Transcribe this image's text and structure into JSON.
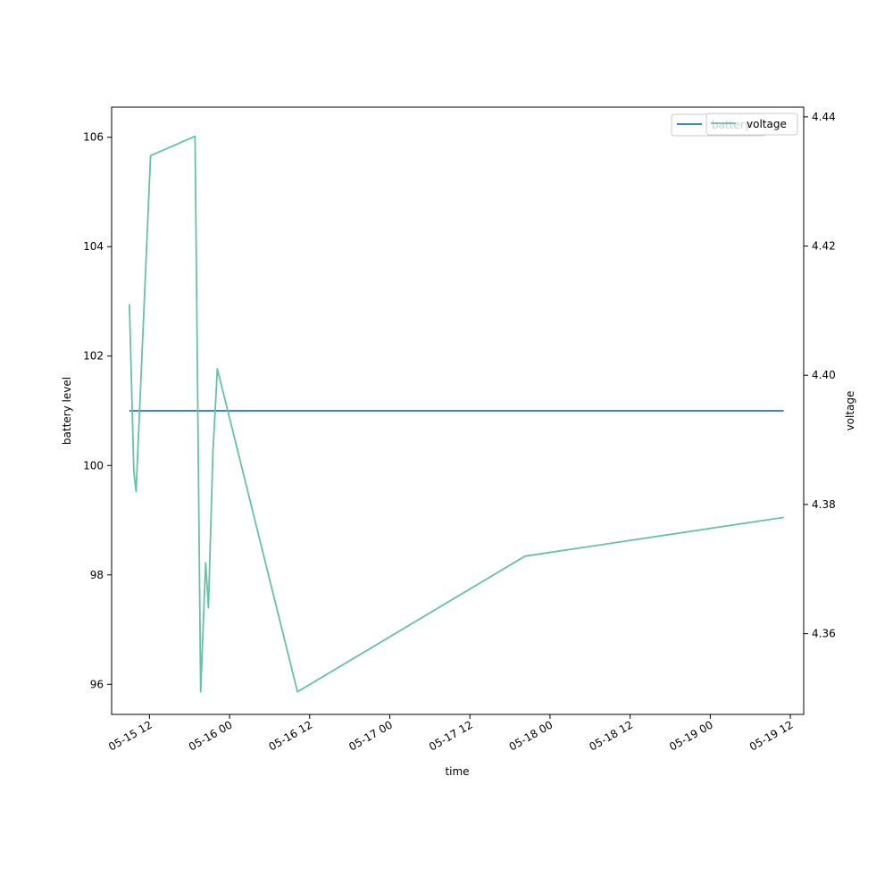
{
  "chart_data": {
    "type": "line",
    "xlabel": "time",
    "ylabel": "battery level",
    "ylabel_right": "voltage",
    "legend_left": [
      "battery"
    ],
    "legend_right": [
      "voltage"
    ],
    "legend_placement": "top-right",
    "grid": false,
    "xlim": [
      "2025-05-15 06:20",
      "2025-05-19 14:00"
    ],
    "ylim": [
      95.45,
      106.55
    ],
    "ylim_right": [
      4.3475,
      4.4415
    ],
    "x_ticks": [
      {
        "t": "2025-05-15 12:00",
        "label": "05-15 12"
      },
      {
        "t": "2025-05-16 00:00",
        "label": "05-16 00"
      },
      {
        "t": "2025-05-16 12:00",
        "label": "05-16 12"
      },
      {
        "t": "2025-05-17 00:00",
        "label": "05-17 00"
      },
      {
        "t": "2025-05-17 12:00",
        "label": "05-17 12"
      },
      {
        "t": "2025-05-18 00:00",
        "label": "05-18 00"
      },
      {
        "t": "2025-05-18 12:00",
        "label": "05-18 12"
      },
      {
        "t": "2025-05-19 00:00",
        "label": "05-19 00"
      },
      {
        "t": "2025-05-19 12:00",
        "label": "05-19 12"
      }
    ],
    "y_ticks": [
      96,
      98,
      100,
      102,
      104,
      106
    ],
    "y_ticks_right": [
      4.36,
      4.38,
      4.4,
      4.42,
      4.44
    ],
    "series": [
      {
        "name": "battery",
        "axis": "left",
        "color": "#1f77b4",
        "points": [
          {
            "t": "2025-05-15 09:00",
            "y": 101
          },
          {
            "t": "2025-05-19 11:00",
            "y": 101
          }
        ]
      },
      {
        "name": "voltage",
        "axis": "right",
        "color": "#66c2a5",
        "points": [
          {
            "t": "2025-05-15 09:00",
            "y": 4.411
          },
          {
            "t": "2025-05-15 09:40",
            "y": 4.385
          },
          {
            "t": "2025-05-15 10:00",
            "y": 4.382
          },
          {
            "t": "2025-05-15 12:10",
            "y": 4.434
          },
          {
            "t": "2025-05-15 18:50",
            "y": 4.437
          },
          {
            "t": "2025-05-15 19:40",
            "y": 4.351
          },
          {
            "t": "2025-05-15 20:25",
            "y": 4.371
          },
          {
            "t": "2025-05-15 20:50",
            "y": 4.364
          },
          {
            "t": "2025-05-15 21:30",
            "y": 4.388
          },
          {
            "t": "2025-05-15 22:10",
            "y": 4.401
          },
          {
            "t": "2025-05-16 10:10",
            "y": 4.351
          },
          {
            "t": "2025-05-17 20:15",
            "y": 4.372
          },
          {
            "t": "2025-05-19 11:00",
            "y": 4.378
          }
        ]
      }
    ]
  }
}
